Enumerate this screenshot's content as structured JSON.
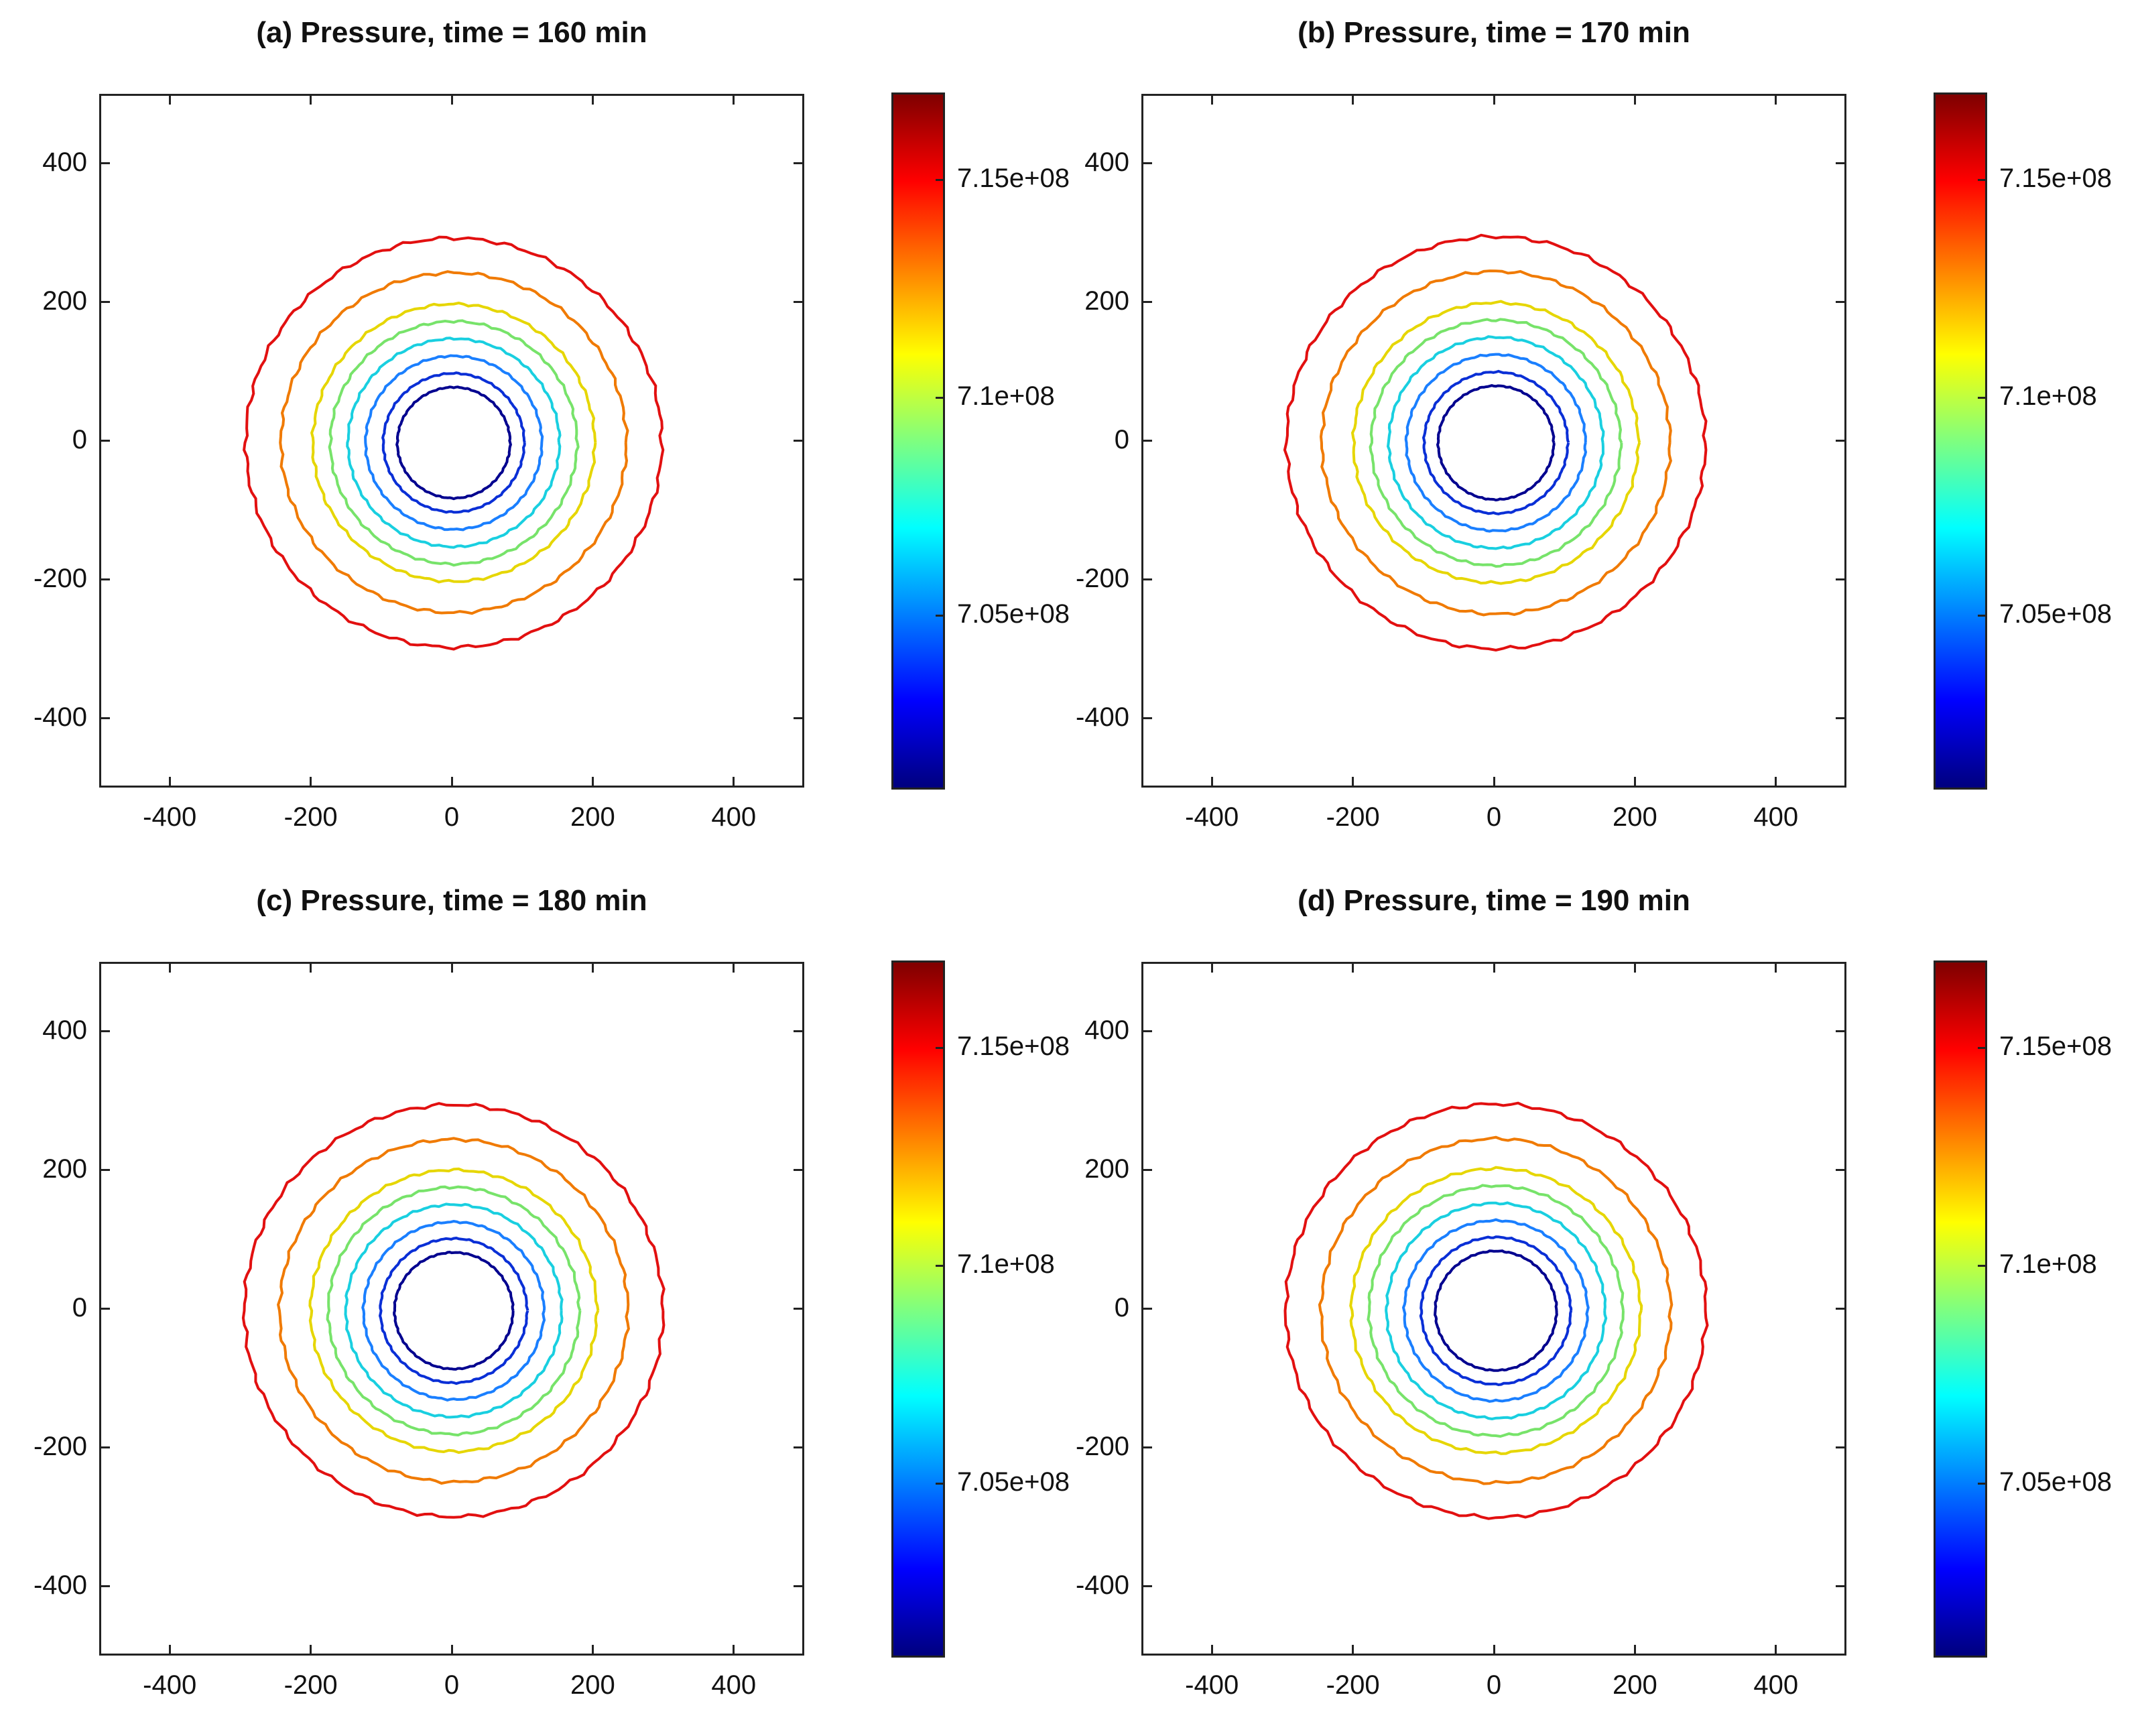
{
  "chart_data": [
    {
      "type": "contour",
      "title": "(a) Pressure, time = 160 min",
      "xlim": [
        -500,
        500
      ],
      "ylim": [
        -500,
        500
      ],
      "xticks": [
        -400,
        -200,
        0,
        200,
        400
      ],
      "yticks": [
        -400,
        -200,
        0,
        200,
        400
      ],
      "xtick_labels": [
        "-400",
        "-200",
        "0",
        "200",
        "400"
      ],
      "ytick_labels": [
        "400",
        "200",
        "0",
        "-200",
        "-400"
      ],
      "contour_radii": [
        80,
        100,
        125,
        150,
        175,
        200,
        245,
        295
      ],
      "colorbar": {
        "min": 701000000.0,
        "max": 717000000.0,
        "ticks": [
          715000000.0,
          710000000.0,
          705000000.0
        ],
        "tick_labels": [
          "7.15e+08",
          "7.1e+08",
          "7.05e+08"
        ]
      }
    },
    {
      "type": "contour",
      "title": "(b) Pressure, time = 170 min",
      "xlim": [
        -500,
        500
      ],
      "ylim": [
        -500,
        500
      ],
      "xticks": [
        -400,
        -200,
        0,
        200,
        400
      ],
      "yticks": [
        -400,
        -200,
        0,
        200,
        400
      ],
      "xtick_labels": [
        "-400",
        "-200",
        "0",
        "200",
        "400"
      ],
      "ytick_labels": [
        "400",
        "200",
        "0",
        "-200",
        "-400"
      ],
      "contour_radii": [
        82,
        102,
        127,
        152,
        177,
        202,
        247,
        297
      ],
      "colorbar": {
        "min": 701000000.0,
        "max": 717000000.0,
        "ticks": [
          715000000.0,
          710000000.0,
          705000000.0
        ],
        "tick_labels": [
          "7.15e+08",
          "7.1e+08",
          "7.05e+08"
        ]
      }
    },
    {
      "type": "contour",
      "title": "(c) Pressure, time = 180 min",
      "xlim": [
        -500,
        500
      ],
      "ylim": [
        -500,
        500
      ],
      "xticks": [
        -400,
        -200,
        0,
        200,
        400
      ],
      "yticks": [
        -400,
        -200,
        0,
        200,
        400
      ],
      "xtick_labels": [
        "-400",
        "-200",
        "0",
        "200",
        "400"
      ],
      "ytick_labels": [
        "400",
        "200",
        "0",
        "-200",
        "-400"
      ],
      "contour_radii": [
        84,
        104,
        128,
        153,
        178,
        203,
        247,
        297
      ],
      "colorbar": {
        "min": 701000000.0,
        "max": 717000000.0,
        "ticks": [
          715000000.0,
          710000000.0,
          705000000.0
        ],
        "tick_labels": [
          "7.15e+08",
          "7.1e+08",
          "7.05e+08"
        ]
      }
    },
    {
      "type": "contour",
      "title": "(d) Pressure, time = 190 min",
      "xlim": [
        -500,
        500
      ],
      "ylim": [
        -500,
        500
      ],
      "xticks": [
        -400,
        -200,
        0,
        200,
        400
      ],
      "yticks": [
        -400,
        -200,
        0,
        200,
        400
      ],
      "xtick_labels": [
        "-400",
        "-200",
        "0",
        "200",
        "400"
      ],
      "ytick_labels": [
        "400",
        "200",
        "0",
        "-200",
        "-400"
      ],
      "contour_radii": [
        86,
        106,
        130,
        155,
        180,
        205,
        248,
        298
      ],
      "colorbar": {
        "min": 701000000.0,
        "max": 717000000.0,
        "ticks": [
          715000000.0,
          710000000.0,
          705000000.0
        ],
        "tick_labels": [
          "7.15e+08",
          "7.1e+08",
          "7.05e+08"
        ]
      }
    }
  ],
  "colors": {
    "jet": [
      "#00007f",
      "#0000ff",
      "#007fff",
      "#00ffff",
      "#7fff7f",
      "#ffff00",
      "#ff7f00",
      "#ff0000",
      "#7f0000"
    ],
    "contours": [
      "#00008f",
      "#0a2fd6",
      "#1a7fff",
      "#19cfe0",
      "#77e36a",
      "#e6d600",
      "#f07a00",
      "#e21010",
      "#7d0000"
    ]
  }
}
